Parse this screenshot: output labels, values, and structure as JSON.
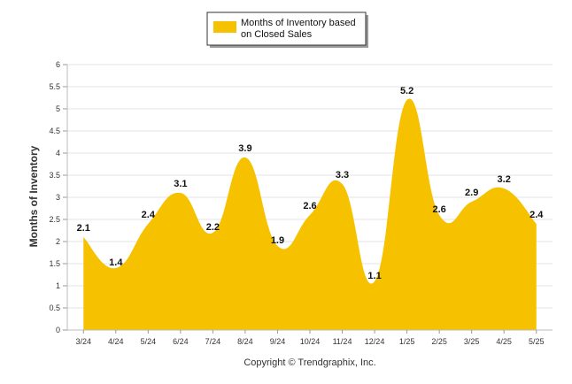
{
  "chart_data": {
    "type": "area",
    "categories": [
      "3/24",
      "4/24",
      "5/24",
      "6/24",
      "7/24",
      "8/24",
      "9/24",
      "10/24",
      "11/24",
      "12/24",
      "1/25",
      "2/25",
      "3/25",
      "4/25",
      "5/25"
    ],
    "series": [
      {
        "name": "Months of Inventory based on Closed Sales",
        "values": [
          2.1,
          1.4,
          2.4,
          3.1,
          2.2,
          3.9,
          1.9,
          2.6,
          3.3,
          1.1,
          5.2,
          2.6,
          2.9,
          3.2,
          2.4
        ],
        "color": "#f6c200"
      }
    ],
    "ylabel": "Months of Inventory",
    "ylim": [
      0,
      6
    ],
    "yticks": [
      "0",
      "0.5",
      "1",
      "1.5",
      "2",
      "2.5",
      "3",
      "3.5",
      "4",
      "4.5",
      "5",
      "5.5",
      "6"
    ],
    "grid": true,
    "legend_position": "top-center"
  },
  "legend": {
    "line1": "Months of Inventory based",
    "line2": "on Closed Sales"
  },
  "footer": {
    "copyright": "Copyright © Trendgraphix, Inc."
  }
}
